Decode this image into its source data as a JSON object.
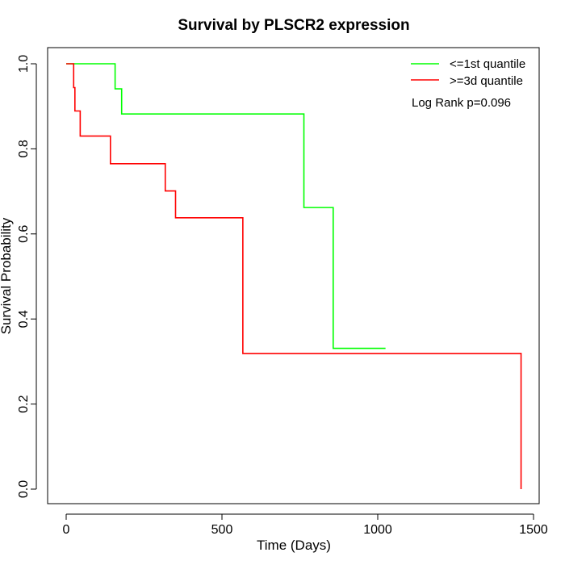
{
  "chart_data": {
    "type": "line",
    "step": true,
    "title": "Survival by PLSCR2 expression",
    "xlabel": "Time (Days)",
    "ylabel": "Survival Probability",
    "xlim": [
      0,
      1500
    ],
    "ylim": [
      0,
      1
    ],
    "x_ticks": [
      0,
      500,
      1000,
      1500
    ],
    "y_ticks": [
      0.0,
      0.2,
      0.4,
      0.6,
      0.8,
      1.0
    ],
    "x_tick_labels": [
      "0",
      "500",
      "1000",
      "1500"
    ],
    "y_tick_labels": [
      "0.0",
      "0.2",
      "0.4",
      "0.6",
      "0.8",
      "1.0"
    ],
    "grid": false,
    "legend_position": "top-right",
    "annotation": "Log Rank p=0.096",
    "series": [
      {
        "name": "<=1st quantile",
        "color": "#00ff00",
        "points": [
          [
            0,
            1.0
          ],
          [
            157,
            1.0
          ],
          [
            157,
            0.941
          ],
          [
            178,
            0.941
          ],
          [
            178,
            0.882
          ],
          [
            763,
            0.882
          ],
          [
            763,
            0.662
          ],
          [
            857,
            0.662
          ],
          [
            857,
            0.331
          ],
          [
            1025,
            0.331
          ]
        ]
      },
      {
        "name": ">=3d quantile",
        "color": "#ff0000",
        "points": [
          [
            0,
            1.0
          ],
          [
            24,
            1.0
          ],
          [
            24,
            0.944
          ],
          [
            28,
            0.944
          ],
          [
            28,
            0.889
          ],
          [
            45,
            0.889
          ],
          [
            45,
            0.83
          ],
          [
            142,
            0.83
          ],
          [
            142,
            0.765
          ],
          [
            318,
            0.765
          ],
          [
            318,
            0.701
          ],
          [
            351,
            0.701
          ],
          [
            351,
            0.638
          ],
          [
            567,
            0.638
          ],
          [
            567,
            0.319
          ],
          [
            1460,
            0.319
          ],
          [
            1460,
            0.0
          ]
        ]
      }
    ]
  }
}
